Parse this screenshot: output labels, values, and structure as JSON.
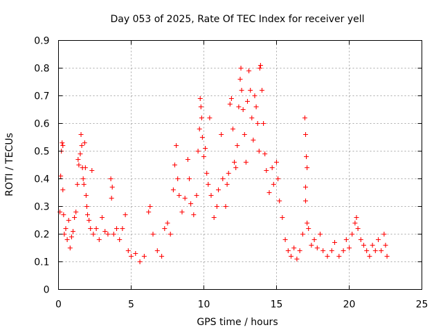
{
  "chart_data": {
    "type": "scatter",
    "title": "Day 053 of 2025, Rate Of TEC Index for receiver yell",
    "xlabel": "GPS time / hours",
    "ylabel": "ROTI / TECUs",
    "xlim": [
      0,
      25
    ],
    "ylim": [
      0,
      0.9
    ],
    "x_ticks": [
      0,
      5,
      10,
      15,
      20,
      25
    ],
    "x_tick_labels": [
      "0",
      "5",
      "10",
      "15",
      "20",
      "25"
    ],
    "y_ticks": [
      0,
      0.1,
      0.2,
      0.3,
      0.4,
      0.5,
      0.6,
      0.7,
      0.8,
      0.9
    ],
    "y_tick_labels": [
      "0",
      "0.1",
      "0.2",
      "0.3",
      "0.4",
      "0.5",
      "0.6",
      "0.7",
      "0.8",
      "0.9"
    ],
    "grid": true,
    "marker": "+",
    "color": "#ff0000",
    "series": [
      {
        "name": "ROTI",
        "points": [
          [
            0.1,
            0.28
          ],
          [
            0.15,
            0.41
          ],
          [
            0.2,
            0.5
          ],
          [
            0.25,
            0.53
          ],
          [
            0.3,
            0.52
          ],
          [
            0.3,
            0.36
          ],
          [
            0.35,
            0.27
          ],
          [
            0.4,
            0.2
          ],
          [
            0.5,
            0.22
          ],
          [
            0.6,
            0.18
          ],
          [
            0.7,
            0.25
          ],
          [
            0.8,
            0.15
          ],
          [
            0.9,
            0.19
          ],
          [
            1.0,
            0.21
          ],
          [
            1.1,
            0.26
          ],
          [
            1.2,
            0.28
          ],
          [
            1.3,
            0.38
          ],
          [
            1.35,
            0.47
          ],
          [
            1.4,
            0.45
          ],
          [
            1.5,
            0.49
          ],
          [
            1.55,
            0.56
          ],
          [
            1.6,
            0.52
          ],
          [
            1.65,
            0.44
          ],
          [
            1.7,
            0.4
          ],
          [
            1.75,
            0.38
          ],
          [
            1.8,
            0.53
          ],
          [
            1.85,
            0.44
          ],
          [
            1.9,
            0.34
          ],
          [
            1.95,
            0.3
          ],
          [
            2.0,
            0.27
          ],
          [
            2.1,
            0.25
          ],
          [
            2.2,
            0.22
          ],
          [
            2.3,
            0.43
          ],
          [
            2.4,
            0.2
          ],
          [
            2.6,
            0.22
          ],
          [
            2.8,
            0.18
          ],
          [
            3.0,
            0.26
          ],
          [
            3.2,
            0.21
          ],
          [
            3.4,
            0.2
          ],
          [
            3.6,
            0.4
          ],
          [
            3.65,
            0.33
          ],
          [
            3.7,
            0.37
          ],
          [
            3.8,
            0.2
          ],
          [
            4.0,
            0.22
          ],
          [
            4.2,
            0.18
          ],
          [
            4.4,
            0.22
          ],
          [
            4.6,
            0.27
          ],
          [
            4.8,
            0.14
          ],
          [
            5.0,
            0.12
          ],
          [
            5.3,
            0.13
          ],
          [
            5.6,
            0.1
          ],
          [
            5.9,
            0.12
          ],
          [
            6.2,
            0.28
          ],
          [
            6.3,
            0.3
          ],
          [
            6.5,
            0.2
          ],
          [
            6.8,
            0.14
          ],
          [
            7.1,
            0.12
          ],
          [
            7.3,
            0.22
          ],
          [
            7.5,
            0.24
          ],
          [
            7.7,
            0.2
          ],
          [
            7.9,
            0.36
          ],
          [
            8.0,
            0.45
          ],
          [
            8.1,
            0.52
          ],
          [
            8.2,
            0.4
          ],
          [
            8.3,
            0.34
          ],
          [
            8.5,
            0.28
          ],
          [
            8.7,
            0.33
          ],
          [
            8.9,
            0.47
          ],
          [
            9.0,
            0.4
          ],
          [
            9.1,
            0.31
          ],
          [
            9.3,
            0.27
          ],
          [
            9.5,
            0.34
          ],
          [
            9.6,
            0.5
          ],
          [
            9.7,
            0.58
          ],
          [
            9.75,
            0.69
          ],
          [
            9.8,
            0.66
          ],
          [
            9.85,
            0.62
          ],
          [
            9.9,
            0.55
          ],
          [
            10.0,
            0.48
          ],
          [
            10.1,
            0.51
          ],
          [
            10.2,
            0.42
          ],
          [
            10.3,
            0.38
          ],
          [
            10.4,
            0.62
          ],
          [
            10.5,
            0.34
          ],
          [
            10.7,
            0.26
          ],
          [
            10.9,
            0.3
          ],
          [
            11.0,
            0.36
          ],
          [
            11.2,
            0.56
          ],
          [
            11.3,
            0.4
          ],
          [
            11.5,
            0.3
          ],
          [
            11.6,
            0.38
          ],
          [
            11.7,
            0.42
          ],
          [
            11.8,
            0.67
          ],
          [
            11.9,
            0.69
          ],
          [
            12.0,
            0.58
          ],
          [
            12.1,
            0.46
          ],
          [
            12.2,
            0.44
          ],
          [
            12.3,
            0.52
          ],
          [
            12.4,
            0.66
          ],
          [
            12.5,
            0.76
          ],
          [
            12.55,
            0.8
          ],
          [
            12.6,
            0.72
          ],
          [
            12.7,
            0.65
          ],
          [
            12.8,
            0.56
          ],
          [
            12.9,
            0.46
          ],
          [
            13.0,
            0.68
          ],
          [
            13.1,
            0.79
          ],
          [
            13.2,
            0.72
          ],
          [
            13.3,
            0.62
          ],
          [
            13.4,
            0.54
          ],
          [
            13.5,
            0.7
          ],
          [
            13.6,
            0.66
          ],
          [
            13.7,
            0.6
          ],
          [
            13.8,
            0.5
          ],
          [
            13.85,
            0.8
          ],
          [
            13.9,
            0.81
          ],
          [
            14.0,
            0.72
          ],
          [
            14.1,
            0.6
          ],
          [
            14.2,
            0.49
          ],
          [
            14.3,
            0.43
          ],
          [
            14.5,
            0.35
          ],
          [
            14.7,
            0.44
          ],
          [
            14.8,
            0.38
          ],
          [
            15.0,
            0.46
          ],
          [
            15.1,
            0.4
          ],
          [
            15.2,
            0.32
          ],
          [
            15.4,
            0.26
          ],
          [
            15.6,
            0.18
          ],
          [
            15.8,
            0.14
          ],
          [
            16.0,
            0.12
          ],
          [
            16.2,
            0.15
          ],
          [
            16.4,
            0.11
          ],
          [
            16.6,
            0.14
          ],
          [
            16.8,
            0.2
          ],
          [
            16.95,
            0.62
          ],
          [
            17.0,
            0.56
          ],
          [
            17.05,
            0.48
          ],
          [
            17.1,
            0.44
          ],
          [
            17.0,
            0.37
          ],
          [
            17.0,
            0.32
          ],
          [
            17.1,
            0.24
          ],
          [
            17.2,
            0.22
          ],
          [
            17.4,
            0.16
          ],
          [
            17.6,
            0.18
          ],
          [
            17.8,
            0.15
          ],
          [
            18.0,
            0.2
          ],
          [
            18.2,
            0.14
          ],
          [
            18.5,
            0.12
          ],
          [
            18.8,
            0.14
          ],
          [
            19.0,
            0.17
          ],
          [
            19.3,
            0.12
          ],
          [
            19.6,
            0.14
          ],
          [
            19.8,
            0.18
          ],
          [
            20.0,
            0.15
          ],
          [
            20.2,
            0.2
          ],
          [
            20.4,
            0.24
          ],
          [
            20.5,
            0.26
          ],
          [
            20.6,
            0.22
          ],
          [
            20.8,
            0.18
          ],
          [
            21.0,
            0.16
          ],
          [
            21.2,
            0.14
          ],
          [
            21.4,
            0.12
          ],
          [
            21.6,
            0.16
          ],
          [
            21.8,
            0.14
          ],
          [
            22.0,
            0.18
          ],
          [
            22.2,
            0.14
          ],
          [
            22.4,
            0.2
          ],
          [
            22.5,
            0.16
          ],
          [
            22.6,
            0.12
          ]
        ]
      }
    ]
  }
}
